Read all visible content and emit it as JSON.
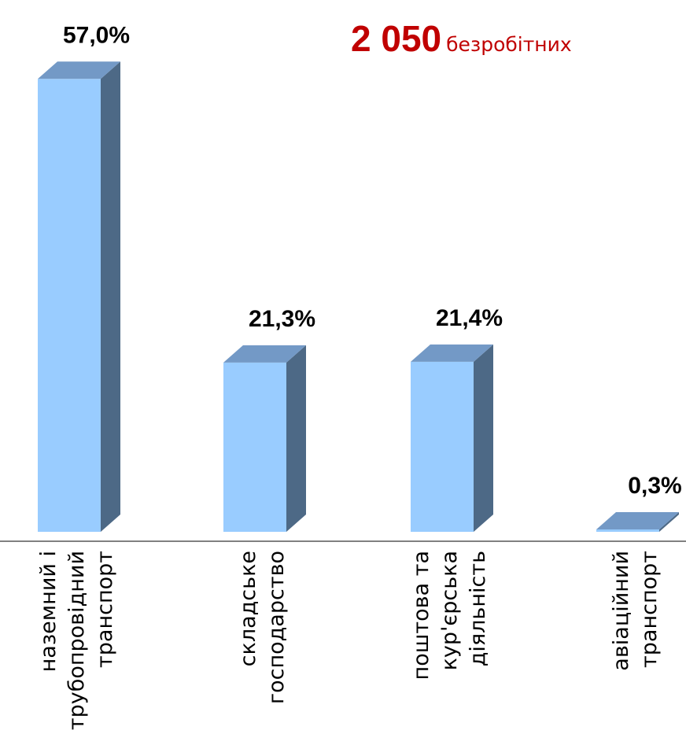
{
  "summary": {
    "count": "2 050",
    "label": "безробітних"
  },
  "colors": {
    "bar_front": "#99ccff",
    "bar_top": "#7399c6",
    "bar_side": "#4d6986",
    "axis": "#808080",
    "headline": "#c00000",
    "text": "#000000"
  },
  "chart_data": {
    "type": "bar",
    "style": "3d-column",
    "categories": [
      [
        "наземний і",
        "трубопровідний",
        "транспорт"
      ],
      [
        "складське",
        "господарство"
      ],
      [
        "поштова та",
        "кур'єрська",
        "діяльність"
      ],
      [
        "авіаційний",
        "транспорт"
      ]
    ],
    "values": [
      57.0,
      21.3,
      21.4,
      0.3
    ],
    "data_labels": [
      "57,0%",
      "21,3%",
      "21,4%",
      "0,3%"
    ],
    "unit": "%",
    "category_label_orientation": "vertical",
    "gridlines": false,
    "legend": "none"
  }
}
